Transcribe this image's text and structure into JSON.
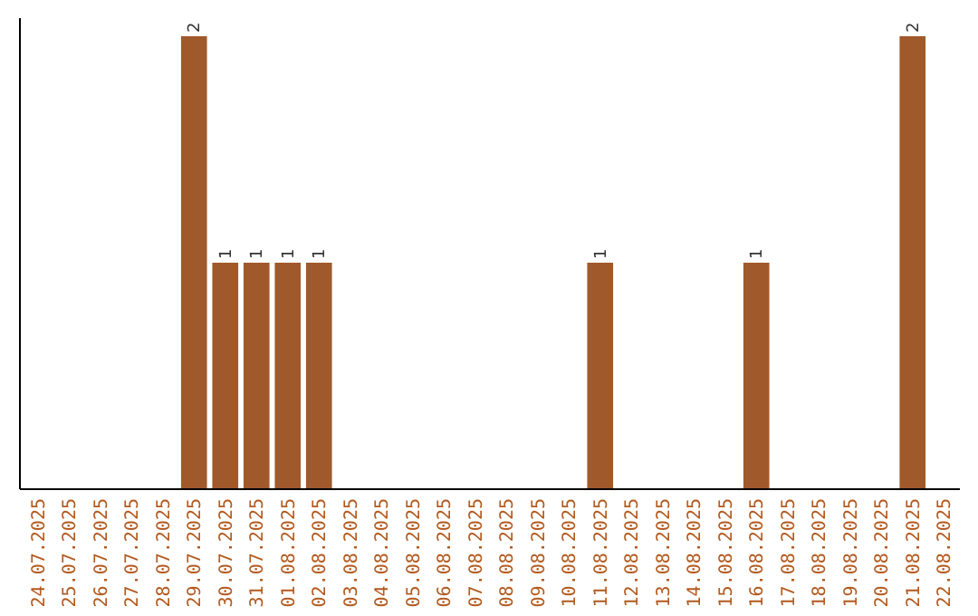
{
  "chart_data": {
    "type": "bar",
    "categories": [
      "24.07.2025",
      "25.07.2025",
      "26.07.2025",
      "27.07.2025",
      "28.07.2025",
      "29.07.2025",
      "30.07.2025",
      "31.07.2025",
      "01.08.2025",
      "02.08.2025",
      "03.08.2025",
      "04.08.2025",
      "05.08.2025",
      "06.08.2025",
      "07.08.2025",
      "08.08.2025",
      "09.08.2025",
      "10.08.2025",
      "11.08.2025",
      "12.08.2025",
      "13.08.2025",
      "14.08.2025",
      "15.08.2025",
      "16.08.2025",
      "17.08.2025",
      "18.08.2025",
      "19.08.2025",
      "20.08.2025",
      "21.08.2025",
      "22.08.2025"
    ],
    "values": [
      0,
      0,
      0,
      0,
      0,
      2,
      1,
      1,
      1,
      1,
      0,
      0,
      0,
      0,
      0,
      0,
      0,
      0,
      1,
      0,
      0,
      0,
      0,
      1,
      0,
      0,
      0,
      0,
      2,
      0
    ],
    "value_labels": [
      null,
      null,
      null,
      null,
      null,
      "2",
      "1",
      "1",
      "1",
      "1",
      null,
      null,
      null,
      null,
      null,
      null,
      null,
      null,
      "1",
      null,
      null,
      null,
      null,
      "1",
      null,
      null,
      null,
      null,
      "2",
      null
    ],
    "color": "#a0592a",
    "ylim": [
      0,
      2.0
    ],
    "tick_labels": "x"
  }
}
